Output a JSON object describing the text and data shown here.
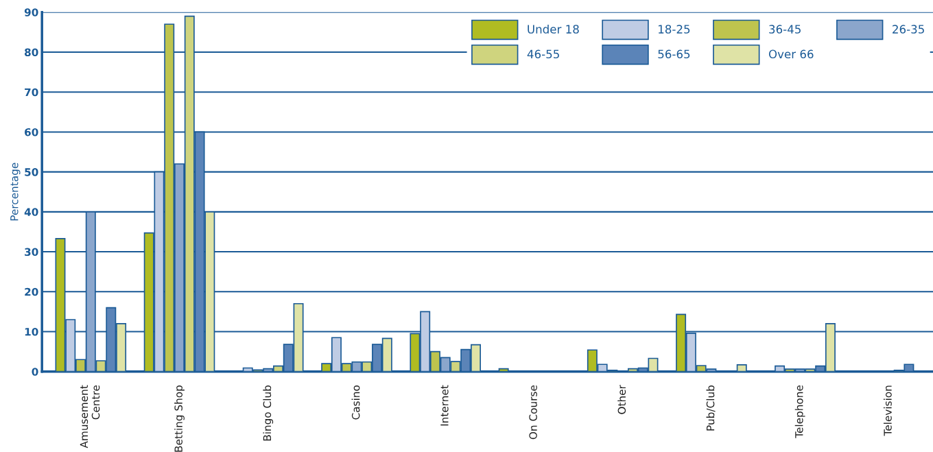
{
  "chart_data": {
    "type": "bar",
    "ylabel": "Percentage",
    "categories": [
      "Amusement Centre",
      "Betting Shop",
      "Bingo Club",
      "Casino",
      "Internet",
      "On Course",
      "Other",
      "Pub/Club",
      "Telephone",
      "Television"
    ],
    "series": [
      {
        "name": "Under 18",
        "color": "#b0bc22",
        "values": [
          33.3,
          34.7,
          null,
          2,
          9.5,
          0.7,
          5.4,
          14.3,
          null,
          null
        ]
      },
      {
        "name": "18-25",
        "color": "#bfcce4",
        "values": [
          13,
          50,
          0.9,
          8.5,
          15,
          null,
          1.8,
          9.6,
          1.4,
          null
        ]
      },
      {
        "name": "36-45",
        "color": "#bec44e",
        "values": [
          3,
          87,
          0.4,
          2,
          5,
          null,
          0.3,
          1.5,
          0.6,
          null
        ]
      },
      {
        "name": "26-35",
        "color": "#8ba6cc",
        "values": [
          40,
          52,
          0.7,
          2.4,
          3.5,
          null,
          null,
          0.6,
          0.6,
          null
        ]
      },
      {
        "name": "46-55",
        "color": "#cfd47e",
        "values": [
          2.7,
          89,
          1.4,
          2.4,
          2.5,
          null,
          0.7,
          null,
          0.6,
          0.3
        ]
      },
      {
        "name": "56-65",
        "color": "#5b84b8",
        "values": [
          16,
          60,
          6.8,
          6.8,
          5.5,
          null,
          0.9,
          null,
          1.4,
          1.8
        ]
      },
      {
        "name": "Over 66",
        "color": "#dfe3a6",
        "values": [
          12,
          40,
          17,
          8.3,
          6.7,
          null,
          3.3,
          1.7,
          12,
          null
        ]
      }
    ],
    "ylim": [
      0,
      90
    ],
    "yticks": [
      0,
      10,
      20,
      30,
      40,
      50,
      60,
      70,
      80,
      90
    ],
    "grid": "y",
    "legend": "top right"
  }
}
